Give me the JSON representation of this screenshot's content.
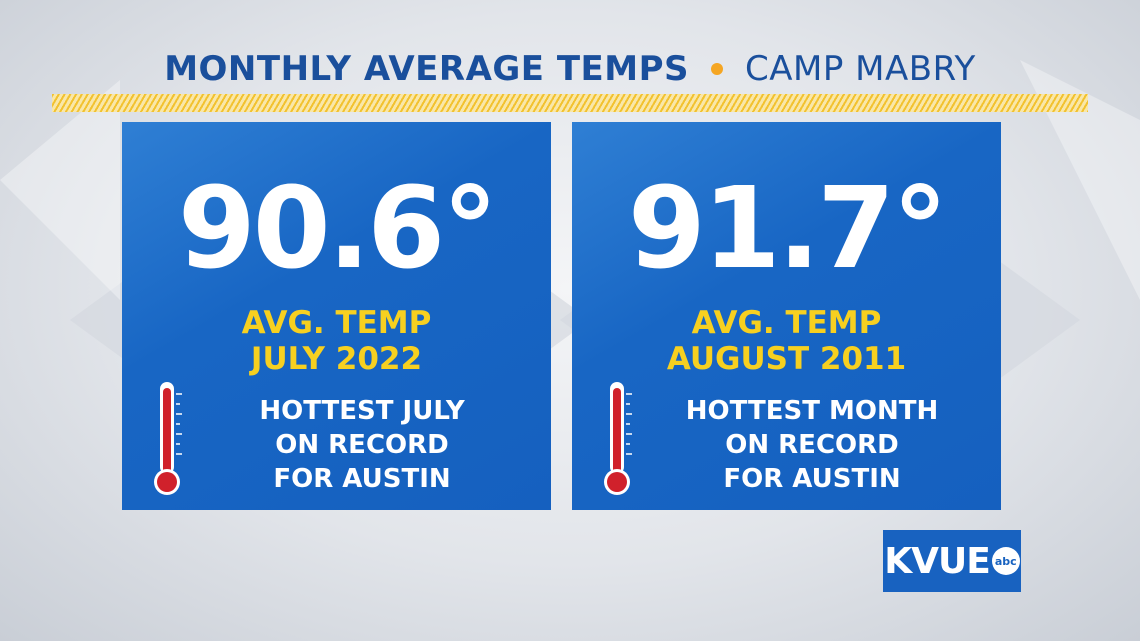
{
  "header": {
    "title": "MONTHLY AVERAGE TEMPS",
    "location": "CAMP MABRY"
  },
  "cards": [
    {
      "temperature": "90.6°",
      "label_line1": "AVG. TEMP",
      "label_line2": "JULY 2022",
      "note_line1": "HOTTEST JULY",
      "note_line2": "ON RECORD",
      "note_line3": "FOR AUSTIN",
      "icon": "thermometer-icon"
    },
    {
      "temperature": "91.7°",
      "label_line1": "AVG. TEMP",
      "label_line2": "AUGUST 2011",
      "note_line1": "HOTTEST MONTH",
      "note_line2": "ON RECORD",
      "note_line3": "FOR AUSTIN",
      "icon": "thermometer-icon"
    }
  ],
  "logo": {
    "station": "KVUE",
    "network": "abc"
  },
  "colors": {
    "accent_blue": "#1560bf",
    "header_blue": "#1a4f9c",
    "highlight_yellow": "#f7d020",
    "dot_orange": "#f5a623",
    "thermometer_red": "#d0212b"
  }
}
